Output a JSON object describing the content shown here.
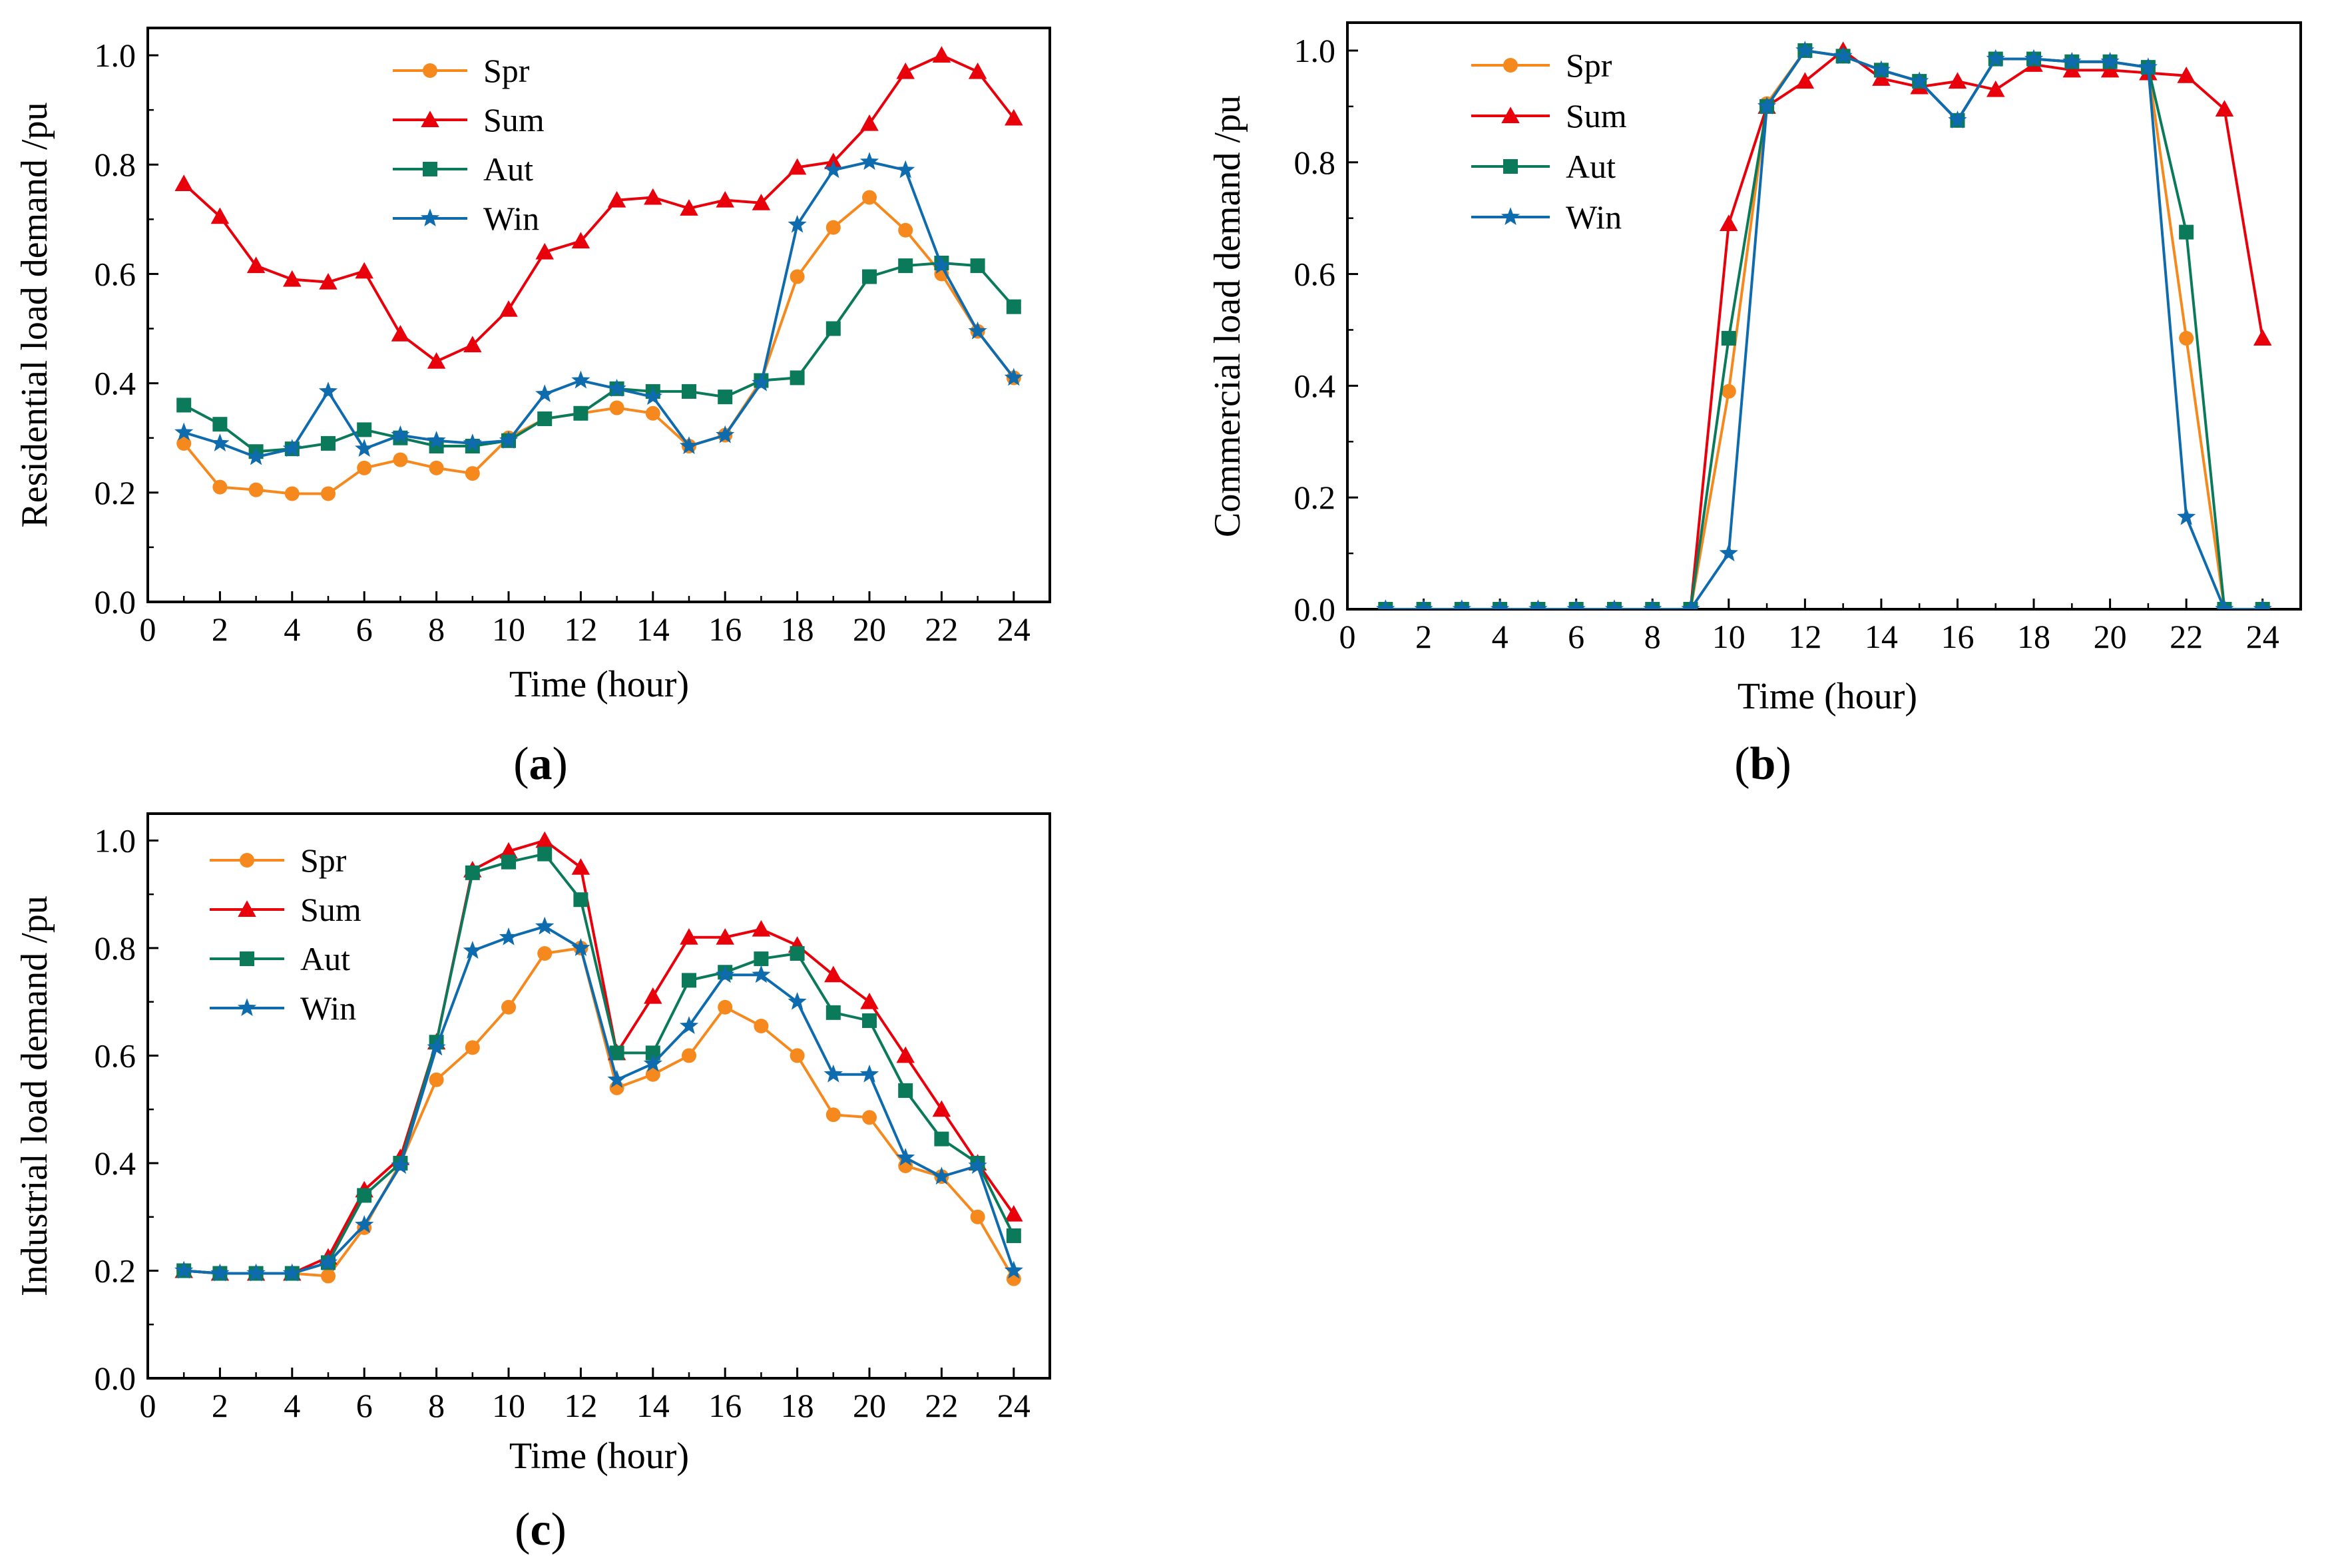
{
  "series_style": {
    "Spr": {
      "color": "#F5891E",
      "marker": "circle"
    },
    "Sum": {
      "color": "#E8000B",
      "marker": "triangle"
    },
    "Aut": {
      "color": "#0A7A5A",
      "marker": "square"
    },
    "Win": {
      "color": "#0E6BAE",
      "marker": "star"
    }
  },
  "chart_data": [
    {
      "type": "line",
      "panel_label": "(a)",
      "panel_letter": "a",
      "xlabel": "Time (hour)",
      "ylabel": "Residential load demand /pu",
      "xlim": [
        0,
        25
      ],
      "ylim": [
        0,
        1.05
      ],
      "xticks": [
        0,
        2,
        4,
        6,
        8,
        10,
        12,
        14,
        16,
        18,
        20,
        22,
        24
      ],
      "yticks": [
        0.0,
        0.2,
        0.4,
        0.6,
        0.8,
        1.0
      ],
      "ytick_labels": [
        "0.0",
        "0.2",
        "0.4",
        "0.6",
        "0.8",
        "1.0"
      ],
      "legend_position": "top-center",
      "x": [
        1,
        2,
        3,
        4,
        5,
        6,
        7,
        8,
        9,
        10,
        11,
        12,
        13,
        14,
        15,
        16,
        17,
        18,
        19,
        20,
        21,
        22,
        23,
        24
      ],
      "series": [
        {
          "name": "Spr",
          "values": [
            0.29,
            0.21,
            0.205,
            0.198,
            0.198,
            0.245,
            0.26,
            0.245,
            0.235,
            0.3,
            0.335,
            0.345,
            0.355,
            0.345,
            0.285,
            0.305,
            0.405,
            0.595,
            0.685,
            0.74,
            0.68,
            0.6,
            0.495,
            0.41
          ]
        },
        {
          "name": "Sum",
          "values": [
            0.765,
            0.705,
            0.615,
            0.59,
            0.585,
            0.605,
            0.49,
            0.44,
            0.47,
            0.535,
            0.64,
            0.66,
            0.735,
            0.74,
            0.72,
            0.735,
            0.73,
            0.795,
            0.805,
            0.875,
            0.97,
            1.0,
            0.97,
            0.885
          ]
        },
        {
          "name": "Aut",
          "values": [
            0.36,
            0.325,
            0.275,
            0.28,
            0.29,
            0.315,
            0.3,
            0.285,
            0.285,
            0.295,
            0.335,
            0.345,
            0.39,
            0.385,
            0.385,
            0.375,
            0.405,
            0.41,
            0.5,
            0.595,
            0.615,
            0.62,
            0.615,
            0.54
          ]
        },
        {
          "name": "Win",
          "values": [
            0.31,
            0.29,
            0.265,
            0.28,
            0.385,
            0.28,
            0.305,
            0.295,
            0.29,
            0.295,
            0.38,
            0.405,
            0.39,
            0.375,
            0.285,
            0.305,
            0.4,
            0.69,
            0.79,
            0.805,
            0.79,
            0.615,
            0.495,
            0.41
          ]
        }
      ]
    },
    {
      "type": "line",
      "panel_label": "(b)",
      "panel_letter": "b",
      "xlabel": "Time (hour)",
      "ylabel": "Commercial load demand /pu",
      "xlim": [
        0,
        25
      ],
      "ylim": [
        0,
        1.05
      ],
      "xticks": [
        0,
        2,
        4,
        6,
        8,
        10,
        12,
        14,
        16,
        18,
        20,
        22,
        24
      ],
      "yticks": [
        0.0,
        0.2,
        0.4,
        0.6,
        0.8,
        1.0
      ],
      "ytick_labels": [
        "0.0",
        "0.2",
        "0.4",
        "0.6",
        "0.8",
        "1.0"
      ],
      "legend_position": "top-left",
      "x": [
        1,
        2,
        3,
        4,
        5,
        6,
        7,
        8,
        9,
        10,
        11,
        12,
        13,
        14,
        15,
        16,
        17,
        18,
        19,
        20,
        21,
        22,
        23,
        24
      ],
      "series": [
        {
          "name": "Spr",
          "values": [
            0,
            0,
            0,
            0,
            0,
            0,
            0,
            0,
            0,
            0.39,
            0.905,
            1.0,
            0.99,
            0.965,
            0.945,
            0.875,
            0.985,
            0.985,
            0.98,
            0.98,
            0.97,
            0.485,
            0.0,
            0.0
          ]
        },
        {
          "name": "Sum",
          "values": [
            0,
            0,
            0,
            0,
            0,
            0,
            0,
            0,
            0,
            0.69,
            0.9,
            0.945,
            1.0,
            0.95,
            0.935,
            0.945,
            0.93,
            0.975,
            0.965,
            0.965,
            0.96,
            0.955,
            0.895,
            0.485
          ]
        },
        {
          "name": "Aut",
          "values": [
            0,
            0,
            0,
            0,
            0,
            0,
            0,
            0,
            0,
            0.485,
            0.9,
            1.0,
            0.99,
            0.965,
            0.945,
            0.875,
            0.985,
            0.985,
            0.98,
            0.98,
            0.97,
            0.675,
            0.0,
            0.0
          ]
        },
        {
          "name": "Win",
          "values": [
            0,
            0,
            0,
            0,
            0,
            0,
            0,
            0,
            0,
            0.1,
            0.9,
            1.0,
            0.99,
            0.965,
            0.945,
            0.875,
            0.985,
            0.985,
            0.98,
            0.98,
            0.97,
            0.165,
            0.0,
            0.0
          ]
        }
      ]
    },
    {
      "type": "line",
      "panel_label": "(c)",
      "panel_letter": "c",
      "xlabel": "Time (hour)",
      "ylabel": "Industrial load demand /pu",
      "xlim": [
        0,
        25
      ],
      "ylim": [
        0,
        1.05
      ],
      "xticks": [
        0,
        2,
        4,
        6,
        8,
        10,
        12,
        14,
        16,
        18,
        20,
        22,
        24
      ],
      "yticks": [
        0.0,
        0.2,
        0.4,
        0.6,
        0.8,
        1.0
      ],
      "ytick_labels": [
        "0.0",
        "0.2",
        "0.4",
        "0.6",
        "0.8",
        "1.0"
      ],
      "legend_position": "top-left",
      "x": [
        1,
        2,
        3,
        4,
        5,
        6,
        7,
        8,
        9,
        10,
        11,
        12,
        13,
        14,
        15,
        16,
        17,
        18,
        19,
        20,
        21,
        22,
        23,
        24
      ],
      "series": [
        {
          "name": "Spr",
          "values": [
            0.2,
            0.195,
            0.195,
            0.195,
            0.19,
            0.28,
            0.4,
            0.555,
            0.615,
            0.69,
            0.79,
            0.8,
            0.54,
            0.565,
            0.6,
            0.69,
            0.655,
            0.6,
            0.49,
            0.485,
            0.395,
            0.375,
            0.3,
            0.185
          ]
        },
        {
          "name": "Sum",
          "values": [
            0.2,
            0.195,
            0.195,
            0.195,
            0.225,
            0.35,
            0.41,
            0.625,
            0.945,
            0.98,
            1.0,
            0.95,
            0.605,
            0.71,
            0.82,
            0.82,
            0.835,
            0.805,
            0.75,
            0.7,
            0.6,
            0.5,
            0.4,
            0.305
          ]
        },
        {
          "name": "Aut",
          "values": [
            0.2,
            0.195,
            0.195,
            0.195,
            0.215,
            0.34,
            0.4,
            0.625,
            0.94,
            0.96,
            0.975,
            0.89,
            0.605,
            0.605,
            0.74,
            0.755,
            0.78,
            0.79,
            0.68,
            0.665,
            0.535,
            0.445,
            0.4,
            0.265
          ]
        },
        {
          "name": "Win",
          "values": [
            0.2,
            0.195,
            0.195,
            0.195,
            0.215,
            0.285,
            0.395,
            0.615,
            0.795,
            0.82,
            0.84,
            0.8,
            0.555,
            0.585,
            0.655,
            0.75,
            0.75,
            0.7,
            0.565,
            0.565,
            0.41,
            0.375,
            0.395,
            0.2
          ]
        }
      ]
    }
  ]
}
